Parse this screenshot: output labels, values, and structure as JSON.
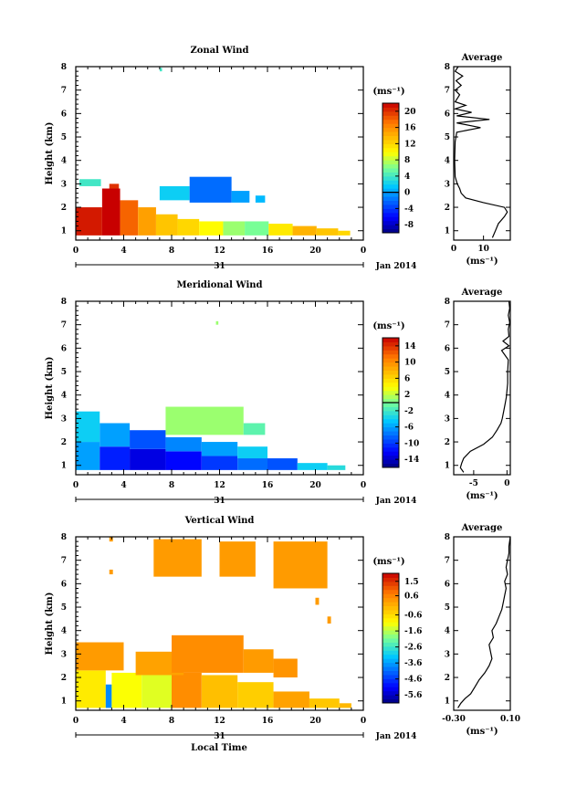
{
  "figure": {
    "date_label": "Jan 2014",
    "day_label": "31",
    "bottom_xlabel": "Local Time",
    "units": "(ms⁻¹)",
    "average_title": "Average",
    "ylabel": "Height (km)"
  },
  "chart_data": [
    {
      "type": "heatmap",
      "title": "Zonal Wind",
      "xlabel": "",
      "ylabel": "Height (km)",
      "xlim": [
        0,
        24
      ],
      "ylim": [
        0.6,
        8
      ],
      "x_ticks": [
        "0",
        "4",
        "8",
        "12",
        "16",
        "20",
        "0"
      ],
      "y_ticks": [
        "1",
        "2",
        "3",
        "4",
        "5",
        "6",
        "7",
        "8"
      ],
      "colorbar": {
        "units": "(ms⁻¹)",
        "min": -10,
        "max": 22,
        "ticks": [
          "20",
          "16",
          "12",
          "8",
          "4",
          "0",
          "-4",
          "-8"
        ],
        "ticks_values": [
          20,
          16,
          12,
          8,
          4,
          0,
          -4,
          -8
        ],
        "contour_level": 0
      },
      "average_profile": {
        "xlabel": "(ms⁻¹)",
        "xlim": [
          0,
          19
        ],
        "x_ticks": [
          "0",
          "10"
        ],
        "x_ticks_values": [
          0,
          10
        ],
        "heights": [
          0.7,
          1.0,
          1.3,
          1.6,
          1.8,
          2.0,
          2.2,
          2.4,
          2.6,
          2.8,
          3.0,
          3.3,
          4.0,
          4.8,
          5.2,
          5.4,
          5.6,
          5.75,
          5.9,
          6.05,
          6.2,
          6.35,
          6.5,
          6.8,
          7.0,
          7.2,
          7.4,
          7.6,
          7.8,
          8.0
        ],
        "values": [
          13,
          14,
          15,
          17,
          18,
          17,
          10,
          4,
          2.5,
          2,
          1.2,
          0.5,
          0.3,
          0.5,
          1,
          9,
          1,
          12,
          1,
          6,
          0.5,
          4,
          0.5,
          2,
          0.5,
          2.5,
          0.8,
          3,
          0.5,
          1.5
        ]
      },
      "cells": [
        {
          "x": 0,
          "y": 0.8,
          "w": 2.2,
          "h": 1.2,
          "v": 21
        },
        {
          "x": 2.2,
          "y": 0.8,
          "w": 1.5,
          "h": 2.0,
          "v": 22
        },
        {
          "x": 2.8,
          "y": 2.8,
          "w": 0.8,
          "h": 0.2,
          "v": 20
        },
        {
          "x": 3.7,
          "y": 0.8,
          "w": 1.5,
          "h": 1.5,
          "v": 18
        },
        {
          "x": 5.2,
          "y": 0.8,
          "w": 1.5,
          "h": 1.2,
          "v": 15
        },
        {
          "x": 6.7,
          "y": 0.8,
          "w": 1.8,
          "h": 0.9,
          "v": 13
        },
        {
          "x": 8.5,
          "y": 0.8,
          "w": 1.8,
          "h": 0.7,
          "v": 12
        },
        {
          "x": 10.3,
          "y": 0.8,
          "w": 2.0,
          "h": 0.6,
          "v": 10
        },
        {
          "x": 12.3,
          "y": 0.8,
          "w": 1.8,
          "h": 0.6,
          "v": 7
        },
        {
          "x": 14.1,
          "y": 0.8,
          "w": 2.0,
          "h": 0.6,
          "v": 6
        },
        {
          "x": 16.1,
          "y": 0.8,
          "w": 2.0,
          "h": 0.5,
          "v": 11
        },
        {
          "x": 18.1,
          "y": 0.8,
          "w": 2.0,
          "h": 0.4,
          "v": 14
        },
        {
          "x": 20.1,
          "y": 0.8,
          "w": 1.8,
          "h": 0.3,
          "v": 13
        },
        {
          "x": 21.9,
          "y": 0.8,
          "w": 1.0,
          "h": 0.2,
          "v": 12
        },
        {
          "x": 0.3,
          "y": 2.9,
          "w": 1.8,
          "h": 0.3,
          "v": 4
        },
        {
          "x": 7.0,
          "y": 2.3,
          "w": 2.5,
          "h": 0.6,
          "v": 2
        },
        {
          "x": 9.5,
          "y": 2.2,
          "w": 3.5,
          "h": 1.1,
          "v": -2
        },
        {
          "x": 13.0,
          "y": 2.2,
          "w": 1.5,
          "h": 0.5,
          "v": 0
        },
        {
          "x": 15.0,
          "y": 2.2,
          "w": 0.8,
          "h": 0.3,
          "v": 1
        },
        {
          "x": 7.0,
          "y": 7.8,
          "w": 0.2,
          "h": 0.15,
          "v": 4
        }
      ]
    },
    {
      "type": "heatmap",
      "title": "Meridional Wind",
      "xlabel": "",
      "ylabel": "Height (km)",
      "xlim": [
        0,
        24
      ],
      "ylim": [
        0.6,
        8
      ],
      "x_ticks": [
        "0",
        "4",
        "8",
        "12",
        "16",
        "20",
        "0"
      ],
      "y_ticks": [
        "1",
        "2",
        "3",
        "4",
        "5",
        "6",
        "7",
        "8"
      ],
      "colorbar": {
        "units": "(ms⁻¹)",
        "min": -16,
        "max": 16,
        "ticks": [
          "14",
          "10",
          "6",
          "2",
          "-2",
          "-6",
          "-10",
          "-14"
        ],
        "ticks_values": [
          14,
          10,
          6,
          2,
          -2,
          -6,
          -10,
          -14
        ],
        "contour_level": 0
      },
      "average_profile": {
        "xlabel": "(ms⁻¹)",
        "xlim": [
          -8,
          0.5
        ],
        "x_ticks": [
          "-5",
          "0"
        ],
        "x_ticks_values": [
          -5,
          0
        ],
        "heights": [
          0.7,
          0.9,
          1.1,
          1.3,
          1.6,
          1.9,
          2.2,
          2.5,
          2.8,
          3.0,
          3.3,
          3.6,
          3.9,
          4.5,
          5.0,
          5.5,
          5.9,
          6.1,
          6.3,
          6.5,
          6.8,
          7.1,
          7.4,
          7.7,
          8.0
        ],
        "values": [
          -6.5,
          -7,
          -6.8,
          -6.5,
          -5.5,
          -3.5,
          -2.2,
          -1.5,
          -0.9,
          -0.7,
          -0.5,
          -0.3,
          -0.1,
          0.1,
          0.1,
          0.2,
          -0.8,
          0.3,
          -0.6,
          0.3,
          0.2,
          0.4,
          0.2,
          0.4,
          0.3
        ]
      },
      "cells": [
        {
          "x": 0,
          "y": 0.8,
          "w": 2.0,
          "h": 1.2,
          "v": -6
        },
        {
          "x": 0,
          "y": 2.0,
          "w": 2.0,
          "h": 1.3,
          "v": -4
        },
        {
          "x": 2.0,
          "y": 0.8,
          "w": 2.5,
          "h": 1.0,
          "v": -11
        },
        {
          "x": 2.0,
          "y": 1.8,
          "w": 2.5,
          "h": 1.0,
          "v": -6
        },
        {
          "x": 4.5,
          "y": 0.8,
          "w": 3.0,
          "h": 0.9,
          "v": -13
        },
        {
          "x": 4.5,
          "y": 1.7,
          "w": 3.0,
          "h": 0.8,
          "v": -9
        },
        {
          "x": 7.5,
          "y": 0.8,
          "w": 3.0,
          "h": 0.8,
          "v": -12
        },
        {
          "x": 7.5,
          "y": 1.6,
          "w": 3.0,
          "h": 0.6,
          "v": -7
        },
        {
          "x": 10.5,
          "y": 0.8,
          "w": 3.0,
          "h": 0.6,
          "v": -10
        },
        {
          "x": 10.5,
          "y": 1.4,
          "w": 3.0,
          "h": 0.6,
          "v": -6
        },
        {
          "x": 13.5,
          "y": 0.8,
          "w": 2.5,
          "h": 0.5,
          "v": -8
        },
        {
          "x": 13.5,
          "y": 1.3,
          "w": 2.5,
          "h": 0.5,
          "v": -4
        },
        {
          "x": 16.0,
          "y": 0.8,
          "w": 2.5,
          "h": 0.5,
          "v": -9
        },
        {
          "x": 18.5,
          "y": 0.8,
          "w": 2.5,
          "h": 0.3,
          "v": -4
        },
        {
          "x": 21.0,
          "y": 0.8,
          "w": 1.5,
          "h": 0.2,
          "v": -3
        },
        {
          "x": 7.5,
          "y": 2.3,
          "w": 6.5,
          "h": 1.2,
          "v": 1
        },
        {
          "x": 14.0,
          "y": 2.3,
          "w": 1.8,
          "h": 0.5,
          "v": -1
        },
        {
          "x": 11.7,
          "y": 7.0,
          "w": 0.2,
          "h": 0.15,
          "v": 1
        }
      ]
    },
    {
      "type": "heatmap",
      "title": "Vertical Wind",
      "xlabel": "Local Time",
      "ylabel": "Height (km)",
      "xlim": [
        0,
        24
      ],
      "ylim": [
        0.6,
        8
      ],
      "x_ticks": [
        "0",
        "4",
        "8",
        "12",
        "16",
        "20",
        "0"
      ],
      "y_ticks": [
        "1",
        "2",
        "3",
        "4",
        "5",
        "6",
        "7",
        "8"
      ],
      "colorbar": {
        "units": "(ms⁻¹)",
        "min": -6.1,
        "max": 2.0,
        "ticks": [
          "1.5",
          "0.6",
          "-0.6",
          "-1.6",
          "-2.6",
          "-3.6",
          "-4.6",
          "-5.6"
        ],
        "ticks_values": [
          1.5,
          0.6,
          -0.6,
          -1.6,
          -2.6,
          -3.6,
          -4.6,
          -5.6
        ],
        "contour_level": null
      },
      "average_profile": {
        "xlabel": "(ms⁻¹)",
        "xlim": [
          -0.3,
          0.1
        ],
        "x_ticks": [
          "-0.30",
          "0.10"
        ],
        "x_ticks_values": [
          -0.3,
          0.1
        ],
        "heights": [
          0.7,
          0.9,
          1.1,
          1.3,
          1.6,
          1.9,
          2.2,
          2.5,
          2.8,
          3.1,
          3.4,
          3.7,
          4.0,
          4.3,
          4.6,
          4.9,
          5.2,
          5.5,
          5.8,
          6.1,
          6.4,
          6.7,
          7.0,
          7.3,
          7.6,
          8.0
        ],
        "values": [
          -0.27,
          -0.25,
          -0.22,
          -0.18,
          -0.15,
          -0.12,
          -0.08,
          -0.05,
          -0.03,
          -0.04,
          -0.05,
          -0.02,
          -0.03,
          0.0,
          0.02,
          0.04,
          0.05,
          0.06,
          0.07,
          0.06,
          0.08,
          0.07,
          0.08,
          0.09,
          0.09,
          0.1
        ]
      },
      "cells": [
        {
          "x": 0,
          "y": 0.7,
          "w": 2.5,
          "h": 1.6,
          "v": -0.8
        },
        {
          "x": 2.5,
          "y": 0.7,
          "w": 0.5,
          "h": 1.0,
          "v": -3.8
        },
        {
          "x": 3.0,
          "y": 0.7,
          "w": 2.5,
          "h": 1.5,
          "v": -1.1
        },
        {
          "x": 5.5,
          "y": 0.7,
          "w": 2.5,
          "h": 1.4,
          "v": -1.3
        },
        {
          "x": 8.0,
          "y": 0.7,
          "w": 2.5,
          "h": 1.5,
          "v": 0.5
        },
        {
          "x": 10.5,
          "y": 0.7,
          "w": 3.0,
          "h": 1.4,
          "v": -0.2
        },
        {
          "x": 13.5,
          "y": 0.7,
          "w": 3.0,
          "h": 1.1,
          "v": -0.4
        },
        {
          "x": 16.5,
          "y": 0.7,
          "w": 3.0,
          "h": 0.7,
          "v": 0.2
        },
        {
          "x": 19.5,
          "y": 0.7,
          "w": 2.5,
          "h": 0.4,
          "v": -0.3
        },
        {
          "x": 22.0,
          "y": 0.7,
          "w": 1.0,
          "h": 0.2,
          "v": -0.1
        },
        {
          "x": 0,
          "y": 2.3,
          "w": 4.0,
          "h": 1.2,
          "v": 0.3
        },
        {
          "x": 5.0,
          "y": 2.1,
          "w": 4.0,
          "h": 1.0,
          "v": 0.2
        },
        {
          "x": 8.0,
          "y": 2.2,
          "w": 6.0,
          "h": 1.6,
          "v": 0.5
        },
        {
          "x": 14.0,
          "y": 2.2,
          "w": 2.5,
          "h": 1.0,
          "v": 0.3
        },
        {
          "x": 16.5,
          "y": 2.0,
          "w": 2.0,
          "h": 0.8,
          "v": 0.4
        },
        {
          "x": 6.5,
          "y": 6.3,
          "w": 4.0,
          "h": 1.6,
          "v": 0.3
        },
        {
          "x": 12.0,
          "y": 6.3,
          "w": 3.0,
          "h": 1.5,
          "v": 0.3
        },
        {
          "x": 16.5,
          "y": 5.8,
          "w": 4.5,
          "h": 2.0,
          "v": 0.3
        },
        {
          "x": 2.8,
          "y": 7.8,
          "w": 0.3,
          "h": 0.2,
          "v": 0.3
        },
        {
          "x": 2.8,
          "y": 6.4,
          "w": 0.3,
          "h": 0.2,
          "v": 0.3
        },
        {
          "x": 20.0,
          "y": 5.1,
          "w": 0.3,
          "h": 0.3,
          "v": 0.3
        },
        {
          "x": 21.0,
          "y": 4.3,
          "w": 0.3,
          "h": 0.3,
          "v": 0.3
        }
      ]
    }
  ]
}
